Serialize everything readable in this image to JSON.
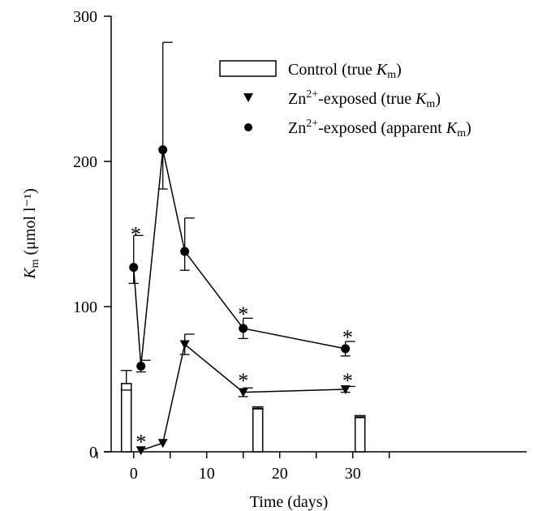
{
  "chart_data": {
    "type": "line",
    "xlabel": "Time (days)",
    "ylabel": {
      "main": "K",
      "sub": "m",
      "rest": " (μmol l⁻¹)"
    },
    "xlim": [
      -5,
      35
    ],
    "ylim": [
      0,
      300
    ],
    "xticks": [
      0,
      10,
      20,
      30
    ],
    "yticks": [
      0,
      100,
      200,
      300
    ],
    "grid": false,
    "legend_position": "top-right",
    "legend": [
      {
        "marker": "bar",
        "pre": "Control (true ",
        "k": "K",
        "sub": "m",
        "post": ")"
      },
      {
        "marker": "triangle",
        "pre": "Zn",
        "sup": "2+",
        "mid": "-exposed (true ",
        "k": "K",
        "sub": "m",
        "post": ")"
      },
      {
        "marker": "circle",
        "pre": "Zn",
        "sup": "2+",
        "mid": "-exposed (apparent ",
        "k": "K",
        "sub": "m",
        "post": ")"
      }
    ],
    "series": [
      {
        "name": "Control (true Km)",
        "type": "bar",
        "points": [
          {
            "x": -1,
            "y": 47,
            "err": 9
          },
          {
            "x": 17,
            "y": 30,
            "err": 1
          },
          {
            "x": 31,
            "y": 24,
            "err": 1
          }
        ]
      },
      {
        "name": "Zn2+-exposed (true Km)",
        "type": "line",
        "marker": "triangle",
        "points": [
          {
            "x": 1,
            "y": 1,
            "err": 0
          },
          {
            "x": 4,
            "y": 6,
            "err": 0
          },
          {
            "x": 7,
            "y": 74,
            "err": 7
          },
          {
            "x": 15,
            "y": 41,
            "err": 3
          },
          {
            "x": 29,
            "y": 43,
            "err": 2
          }
        ]
      },
      {
        "name": "Zn2+-exposed (apparent Km)",
        "type": "line",
        "marker": "circle",
        "points": [
          {
            "x": 0,
            "y": 127,
            "err": 22,
            "err_low": 11
          },
          {
            "x": 1,
            "y": 59,
            "err": 4
          },
          {
            "x": 4,
            "y": 208,
            "err": 74,
            "err_low": 27
          },
          {
            "x": 7,
            "y": 138,
            "err": 23,
            "err_low": 13
          },
          {
            "x": 15,
            "y": 85,
            "err": 7
          },
          {
            "x": 29,
            "y": 71,
            "err": 5
          }
        ]
      }
    ],
    "annotations": [
      {
        "text": "*",
        "x": 0.3,
        "y": 154
      },
      {
        "text": "*",
        "x": 1,
        "y": 11
      },
      {
        "text": "*",
        "x": 15,
        "y": 99
      },
      {
        "text": "*",
        "x": 15,
        "y": 53
      },
      {
        "text": "*",
        "x": 29.3,
        "y": 83
      },
      {
        "text": "*",
        "x": 29.3,
        "y": 53
      }
    ]
  }
}
